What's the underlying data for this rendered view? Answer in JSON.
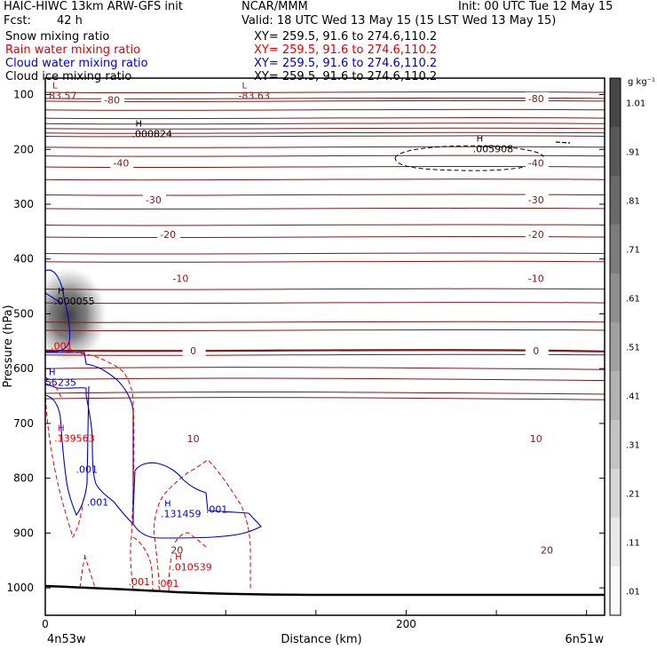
{
  "header": {
    "model": "HAIC-HIWC 13km ARW-GFS init",
    "org": "NCAR/MMM",
    "init": "Init: 00 UTC Tue 12 May 15",
    "fcst_label": "Fcst:",
    "fcst_value": "42 h",
    "valid": "Valid: 18 UTC Wed 13 May 15 (15 LST Wed 13 May 15)"
  },
  "fields": [
    {
      "name": "Snow mixing ratio",
      "xy": "XY= 259.5, 91.6 to 274.6,110.2",
      "color": "#000000"
    },
    {
      "name": "Rain water mixing ratio",
      "xy": "XY= 259.5, 91.6 to 274.6,110.2",
      "color": "#e00000"
    },
    {
      "name": "Cloud water mixing ratio",
      "xy": "XY= 259.5, 91.6 to 274.6,110.2",
      "color": "#0000cc"
    },
    {
      "name": "Cloud ice mixing ratio",
      "xy": "XY= 259.5, 91.6 to 274.6,110.2",
      "color": "#000000"
    }
  ],
  "chart_data": {
    "type": "cross-section",
    "ylabel": "Pressure (hPa)",
    "xlabel": "Distance (km)",
    "x_start_label": "4n53w",
    "x_end_label": "6n51w",
    "xlim": [
      0,
      310
    ],
    "ylim": [
      1050,
      70
    ],
    "x_ticks": [
      0,
      50,
      100,
      150,
      200,
      250,
      300
    ],
    "x_tick_labels": [
      {
        "value": 0,
        "label": "0"
      },
      {
        "value": 200,
        "label": "200"
      }
    ],
    "y_ticks": [
      100,
      200,
      300,
      400,
      500,
      600,
      700,
      800,
      900,
      1000
    ],
    "y_tick_labels": [
      "100",
      "200",
      "300",
      "400",
      "500",
      "600",
      "700",
      "800",
      "900",
      "1000"
    ],
    "colorbar": {
      "unit": "g kg⁻¹",
      "levels": [
        ".01",
        ".11",
        ".21",
        ".31",
        ".41",
        ".51",
        ".61",
        ".71",
        ".81",
        ".91",
        "1.01"
      ]
    },
    "colors": {
      "temperature": "#7a1a1a",
      "rain": "#e00000",
      "cloud_water": "#0000cc",
      "ice": "#000000"
    },
    "temperature_labels": [
      {
        "label": "-80",
        "x": 37,
        "p": 110
      },
      {
        "label": "-80",
        "x": 272,
        "p": 107
      },
      {
        "label": "-40",
        "x": 42,
        "p": 225
      },
      {
        "label": "-40",
        "x": 272,
        "p": 225
      },
      {
        "label": "-30",
        "x": 60,
        "p": 292
      },
      {
        "label": "-30",
        "x": 272,
        "p": 292
      },
      {
        "label": "-20",
        "x": 68,
        "p": 355
      },
      {
        "label": "-20",
        "x": 272,
        "p": 355
      },
      {
        "label": "-10",
        "x": 75,
        "p": 435
      },
      {
        "label": "-10",
        "x": 272,
        "p": 435
      },
      {
        "label": "0",
        "x": 82,
        "p": 567
      },
      {
        "label": "0",
        "x": 272,
        "p": 567
      },
      {
        "label": "10",
        "x": 82,
        "p": 728
      },
      {
        "label": "10",
        "x": 272,
        "p": 728
      },
      {
        "label": "20",
        "x": 73,
        "p": 931
      },
      {
        "label": "20",
        "x": 278,
        "p": 931
      }
    ],
    "extrema": [
      {
        "type": "L",
        "value": "83.57",
        "x": 2,
        "p": 95,
        "color": "#7a1a1a"
      },
      {
        "type": "L",
        "value": "-83.63",
        "x": 107,
        "p": 95,
        "color": "#7a1a1a"
      },
      {
        "type": "H",
        "value": ".000824",
        "x": 48,
        "p": 165,
        "color": "#000000"
      },
      {
        "type": "H",
        "value": ".005908",
        "x": 237,
        "p": 192,
        "color": "#000000"
      },
      {
        "type": "H",
        "value": ".000055",
        "x": 5,
        "p": 470,
        "color": "#000000"
      },
      {
        "type": "H",
        "value": "55235",
        "x": 0,
        "p": 618,
        "color": "#0000cc"
      },
      {
        "type": "H",
        "value": ".139563",
        "x": 5,
        "p": 720,
        "color": "#e00000"
      },
      {
        "type": "H",
        "value": ".131459",
        "x": 64,
        "p": 858,
        "color": "#0000cc"
      },
      {
        "type": "H",
        "value": ".010539",
        "x": 70,
        "p": 955,
        "color": "#e00000"
      }
    ],
    "contour_labels": [
      {
        "label": ".001",
        "x": 3,
        "p": 565,
        "color": "#e00000"
      },
      {
        "label": ".001",
        "x": 17,
        "p": 790,
        "color": "#0000cc"
      },
      {
        "label": ".001",
        "x": 23,
        "p": 850,
        "color": "#0000cc"
      },
      {
        "label": ".001",
        "x": 89,
        "p": 863,
        "color": "#0000cc"
      },
      {
        "label": ".001",
        "x": 46,
        "p": 995,
        "color": "#e00000"
      },
      {
        "label": ".001",
        "x": 62,
        "p": 998,
        "color": "#e00000"
      }
    ],
    "snow_maximum": {
      "x": 13,
      "p": 503
    }
  }
}
